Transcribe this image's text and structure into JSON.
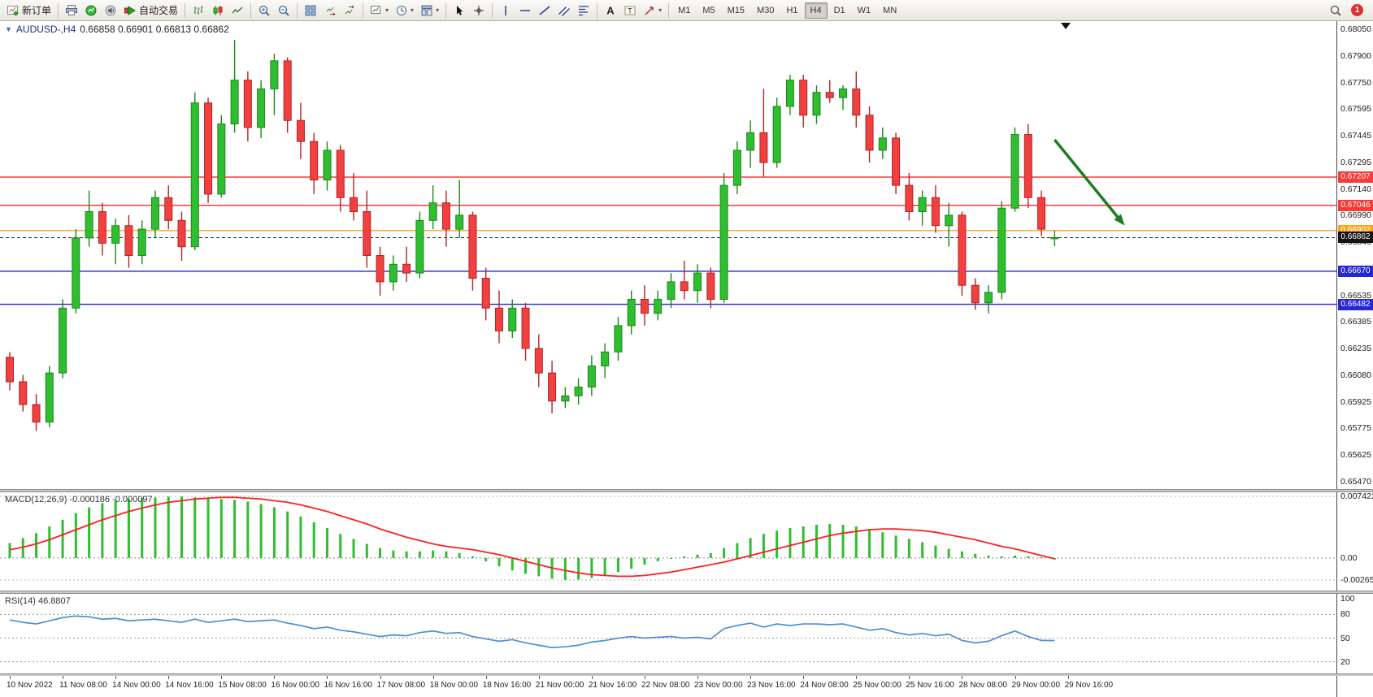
{
  "toolbar": {
    "new_order_label": "新订单",
    "auto_trading_label": "自动交易",
    "timeframes": [
      "M1",
      "M5",
      "M15",
      "M30",
      "H1",
      "H4",
      "D1",
      "W1",
      "MN"
    ],
    "active_timeframe": "H4",
    "notification_count": "1",
    "icons": [
      "new-order",
      "print",
      "quotes",
      "sound",
      "auto-trading",
      "bar-chart",
      "candlestick-chart",
      "line-chart",
      "zoom-in",
      "zoom-out",
      "tile-windows",
      "auto-scroll",
      "chart-shift",
      "new-chart",
      "periods",
      "templates",
      "cursor",
      "crosshair",
      "vertical-line",
      "horizontal-line",
      "trendline",
      "equidistant-channel",
      "fibonacci",
      "text",
      "text-label",
      "arrows",
      "search"
    ]
  },
  "chart": {
    "symbol_period": "AUDUSD-,H4",
    "ohlc_text": "0.66858 0.66901 0.66813 0.66862"
  },
  "indicators": {
    "macd": {
      "label": "MACD(12,26,9)",
      "values_text": "-0.000186 -0.000097"
    },
    "rsi": {
      "label": "RSI(14)",
      "value_text": "46.8807"
    }
  },
  "chart_data": {
    "type": "candlestick",
    "symbol": "AUDUSD",
    "period": "H4",
    "price_axis": {
      "max": 0.6805,
      "min": 0.6547,
      "labels": [
        "0.68050",
        "0.67900",
        "0.67750",
        "0.67595",
        "0.67445",
        "0.67295",
        "0.67140",
        "0.66990",
        "0.66840",
        "0.66690",
        "0.66535",
        "0.66385",
        "0.66235",
        "0.66080",
        "0.65925",
        "0.65775",
        "0.65625",
        "0.65470"
      ]
    },
    "candles": [
      [
        0.6618,
        0.6621,
        0.6599,
        0.6604
      ],
      [
        0.6604,
        0.6608,
        0.6587,
        0.6591
      ],
      [
        0.6591,
        0.6597,
        0.6576,
        0.6581
      ],
      [
        0.6581,
        0.6613,
        0.6578,
        0.6609
      ],
      [
        0.6609,
        0.6651,
        0.6606,
        0.6646
      ],
      [
        0.6646,
        0.6691,
        0.6643,
        0.6686
      ],
      [
        0.6686,
        0.6713,
        0.6681,
        0.6701
      ],
      [
        0.6701,
        0.6706,
        0.6676,
        0.6683
      ],
      [
        0.6683,
        0.6697,
        0.6671,
        0.6693
      ],
      [
        0.6693,
        0.6699,
        0.6669,
        0.6676
      ],
      [
        0.6676,
        0.6696,
        0.6671,
        0.6691
      ],
      [
        0.6691,
        0.6713,
        0.6686,
        0.6709
      ],
      [
        0.6709,
        0.6716,
        0.6691,
        0.6696
      ],
      [
        0.6696,
        0.6701,
        0.6673,
        0.6681
      ],
      [
        0.6681,
        0.6769,
        0.6679,
        0.6763
      ],
      [
        0.6763,
        0.6766,
        0.6706,
        0.6711
      ],
      [
        0.6711,
        0.6756,
        0.6709,
        0.6751
      ],
      [
        0.6751,
        0.6799,
        0.6746,
        0.6776
      ],
      [
        0.6776,
        0.6781,
        0.6741,
        0.6749
      ],
      [
        0.6749,
        0.6776,
        0.6743,
        0.6771
      ],
      [
        0.6771,
        0.6791,
        0.6756,
        0.6787
      ],
      [
        0.6787,
        0.6789,
        0.6746,
        0.6753
      ],
      [
        0.6753,
        0.6763,
        0.6731,
        0.6741
      ],
      [
        0.6741,
        0.6746,
        0.6711,
        0.6719
      ],
      [
        0.6719,
        0.6741,
        0.6713,
        0.6736
      ],
      [
        0.6736,
        0.6739,
        0.6701,
        0.6709
      ],
      [
        0.6709,
        0.6723,
        0.6696,
        0.6701
      ],
      [
        0.6701,
        0.6713,
        0.6669,
        0.6676
      ],
      [
        0.6676,
        0.6681,
        0.6653,
        0.6661
      ],
      [
        0.6661,
        0.6676,
        0.6656,
        0.6671
      ],
      [
        0.6671,
        0.6681,
        0.6661,
        0.6666
      ],
      [
        0.6666,
        0.6701,
        0.6663,
        0.6696
      ],
      [
        0.6696,
        0.6716,
        0.6691,
        0.6706
      ],
      [
        0.6706,
        0.6713,
        0.6681,
        0.6691
      ],
      [
        0.6691,
        0.6719,
        0.6686,
        0.6699
      ],
      [
        0.6699,
        0.6701,
        0.6656,
        0.6663
      ],
      [
        0.6663,
        0.6669,
        0.6639,
        0.6646
      ],
      [
        0.6646,
        0.6656,
        0.6626,
        0.6633
      ],
      [
        0.6633,
        0.6651,
        0.6629,
        0.6646
      ],
      [
        0.6646,
        0.6649,
        0.6616,
        0.6623
      ],
      [
        0.6623,
        0.6631,
        0.6601,
        0.6609
      ],
      [
        0.6609,
        0.6616,
        0.6586,
        0.6593
      ],
      [
        0.6593,
        0.6601,
        0.6589,
        0.6596
      ],
      [
        0.6596,
        0.6606,
        0.6591,
        0.6601
      ],
      [
        0.6601,
        0.6619,
        0.6596,
        0.6613
      ],
      [
        0.6613,
        0.6626,
        0.6606,
        0.6621
      ],
      [
        0.6621,
        0.6641,
        0.6616,
        0.6636
      ],
      [
        0.6636,
        0.6656,
        0.6631,
        0.6651
      ],
      [
        0.6651,
        0.6659,
        0.6636,
        0.6643
      ],
      [
        0.6643,
        0.6656,
        0.6639,
        0.6651
      ],
      [
        0.6651,
        0.6666,
        0.6646,
        0.6661
      ],
      [
        0.6661,
        0.6673,
        0.6651,
        0.6656
      ],
      [
        0.6656,
        0.6671,
        0.6649,
        0.6666
      ],
      [
        0.6666,
        0.6669,
        0.6646,
        0.6651
      ],
      [
        0.6651,
        0.6723,
        0.6649,
        0.6716
      ],
      [
        0.6716,
        0.6741,
        0.6711,
        0.6736
      ],
      [
        0.6736,
        0.6753,
        0.6726,
        0.6746
      ],
      [
        0.6746,
        0.6771,
        0.6721,
        0.6729
      ],
      [
        0.6729,
        0.6766,
        0.6726,
        0.6761
      ],
      [
        0.6761,
        0.6779,
        0.6756,
        0.6776
      ],
      [
        0.6776,
        0.6779,
        0.6749,
        0.6756
      ],
      [
        0.6756,
        0.6773,
        0.6751,
        0.6769
      ],
      [
        0.6769,
        0.6776,
        0.6763,
        0.6766
      ],
      [
        0.6766,
        0.6773,
        0.6759,
        0.6771
      ],
      [
        0.6771,
        0.6781,
        0.6749,
        0.6756
      ],
      [
        0.6756,
        0.6761,
        0.6729,
        0.6736
      ],
      [
        0.6736,
        0.6749,
        0.6731,
        0.6743
      ],
      [
        0.6743,
        0.6746,
        0.6711,
        0.6716
      ],
      [
        0.6716,
        0.6723,
        0.6696,
        0.6701
      ],
      [
        0.6701,
        0.6713,
        0.6693,
        0.6709
      ],
      [
        0.6709,
        0.6716,
        0.6689,
        0.6693
      ],
      [
        0.6693,
        0.6706,
        0.6681,
        0.6699
      ],
      [
        0.6699,
        0.6701,
        0.6653,
        0.6659
      ],
      [
        0.6659,
        0.6663,
        0.6645,
        0.6649
      ],
      [
        0.6649,
        0.6659,
        0.6643,
        0.6655
      ],
      [
        0.6655,
        0.6707,
        0.6651,
        0.6703
      ],
      [
        0.6703,
        0.6749,
        0.6701,
        0.6745
      ],
      [
        0.6745,
        0.6751,
        0.6703,
        0.6709
      ],
      [
        0.6709,
        0.6713,
        0.6687,
        0.6691
      ],
      [
        0.66858,
        0.66901,
        0.66813,
        0.66862
      ]
    ],
    "levels": [
      {
        "label": "0.67207",
        "value": 0.67207,
        "color": "#fa3a3a"
      },
      {
        "label": "0.67046",
        "value": 0.67046,
        "color": "#fa3a3a"
      },
      {
        "label": "0.66902",
        "value": 0.66902,
        "color": "#ffa318"
      },
      {
        "label": "0.66670",
        "value": 0.6667,
        "color": "#2626d4"
      },
      {
        "label": "0.66482",
        "value": 0.66482,
        "color": "#2626d4"
      }
    ],
    "current_price": {
      "label": "0.66862",
      "value": 0.66862,
      "color": "#141414"
    },
    "annotation_arrow": {
      "color": "#1e7d1e",
      "from": {
        "bar": 79.0,
        "price": 0.6742
      },
      "to": {
        "bar": 84.3,
        "price": 0.6693
      }
    },
    "macd": {
      "params": "12,26,9",
      "axis": {
        "max": 0.007422,
        "zero": 0,
        "min": -0.002651,
        "labels": [
          "0.007422",
          "0.00",
          "-0.002651"
        ]
      },
      "histogram": [
        0.0018,
        0.0024,
        0.003,
        0.0038,
        0.0046,
        0.0054,
        0.0061,
        0.0066,
        0.0069,
        0.0071,
        0.0072,
        0.0073,
        0.0074,
        0.0074,
        0.0073,
        0.0072,
        0.0071,
        0.007,
        0.0068,
        0.0065,
        0.0061,
        0.0056,
        0.005,
        0.0043,
        0.0036,
        0.0029,
        0.0023,
        0.0017,
        0.0012,
        0.0009,
        0.0008,
        0.0008,
        0.0009,
        0.0008,
        0.0006,
        0.0002,
        -0.0004,
        -0.001,
        -0.0015,
        -0.0019,
        -0.0022,
        -0.0025,
        -0.00265,
        -0.0026,
        -0.0024,
        -0.0021,
        -0.0017,
        -0.0013,
        -0.0008,
        -0.0004,
        -0.0001,
        0.0002,
        0.0004,
        0.0006,
        0.0012,
        0.0018,
        0.0024,
        0.0029,
        0.0033,
        0.0036,
        0.0038,
        0.004,
        0.0041,
        0.004,
        0.0038,
        0.0035,
        0.0031,
        0.0027,
        0.0023,
        0.0019,
        0.0015,
        0.0011,
        0.0008,
        0.0005,
        0.0003,
        0.0002,
        0.0003,
        0.0002,
        0.0,
        -0.000186
      ],
      "signal": [
        0.001,
        0.0013,
        0.0017,
        0.0022,
        0.0028,
        0.0034,
        0.004,
        0.0046,
        0.0051,
        0.0056,
        0.006,
        0.0064,
        0.0067,
        0.0069,
        0.0071,
        0.0072,
        0.0073,
        0.0073,
        0.0072,
        0.0071,
        0.0069,
        0.0067,
        0.0064,
        0.006,
        0.0056,
        0.0051,
        0.0046,
        0.0041,
        0.0035,
        0.003,
        0.0025,
        0.0021,
        0.0017,
        0.0014,
        0.0012,
        0.001,
        0.0007,
        0.0004,
        0.0,
        -0.0004,
        -0.0008,
        -0.0012,
        -0.0015,
        -0.0018,
        -0.002,
        -0.0021,
        -0.0022,
        -0.0022,
        -0.0021,
        -0.0019,
        -0.0017,
        -0.0014,
        -0.0011,
        -0.0008,
        -0.0005,
        -0.0001,
        0.0003,
        0.0007,
        0.0011,
        0.0015,
        0.0019,
        0.0023,
        0.0027,
        0.003,
        0.0032,
        0.0034,
        0.0035,
        0.0035,
        0.0034,
        0.0033,
        0.0031,
        0.0028,
        0.0025,
        0.0022,
        0.0018,
        0.0014,
        0.0011,
        0.0007,
        0.0003,
        -9.7e-05
      ]
    },
    "rsi": {
      "period": 14,
      "levels": [
        80,
        50,
        20
      ],
      "axis_labels": [
        {
          "text": "100",
          "value": 100
        },
        {
          "text": "80",
          "value": 80
        },
        {
          "text": "50",
          "value": 50
        },
        {
          "text": "20",
          "value": 20
        }
      ],
      "values": [
        73,
        70,
        68,
        72,
        76,
        78,
        77,
        74,
        75,
        72,
        73,
        74,
        72,
        70,
        74,
        70,
        72,
        74,
        71,
        72,
        73,
        69,
        66,
        62,
        64,
        60,
        58,
        55,
        52,
        54,
        53,
        57,
        59,
        56,
        57,
        52,
        49,
        46,
        48,
        44,
        41,
        38,
        39,
        41,
        45,
        47,
        50,
        52,
        50,
        51,
        52,
        50,
        51,
        49,
        62,
        66,
        69,
        64,
        68,
        66,
        68,
        68,
        67,
        68,
        64,
        60,
        62,
        57,
        54,
        56,
        53,
        55,
        47,
        44,
        46,
        53,
        59,
        52,
        47,
        46.88
      ]
    },
    "time_axis": {
      "bars_per_label": 4,
      "labels": [
        "10 Nov 2022",
        "11 Nov 08:00",
        "14 Nov 00:00",
        "14 Nov 16:00",
        "15 Nov 08:00",
        "16 Nov 00:00",
        "16 Nov 16:00",
        "17 Nov 08:00",
        "18 Nov 00:00",
        "18 Nov 16:00",
        "21 Nov 00:00",
        "21 Nov 16:00",
        "22 Nov 08:00",
        "23 Nov 00:00",
        "23 Nov 16:00",
        "24 Nov 08:00",
        "25 Nov 00:00",
        "25 Nov 16:00",
        "28 Nov 08:00",
        "29 Nov 00:00",
        "29 Nov 16:00"
      ]
    },
    "colors": {
      "up": "#2fbe2f",
      "down": "#f04040",
      "up_border": "#1c871c",
      "down_border": "#b32424",
      "macd_histogram": "#2fbe2f",
      "macd_signal": "#ff2020",
      "rsi_line": "#4a8fd4",
      "background": "#ffffff",
      "axis_text": "#1a1a1a"
    }
  }
}
